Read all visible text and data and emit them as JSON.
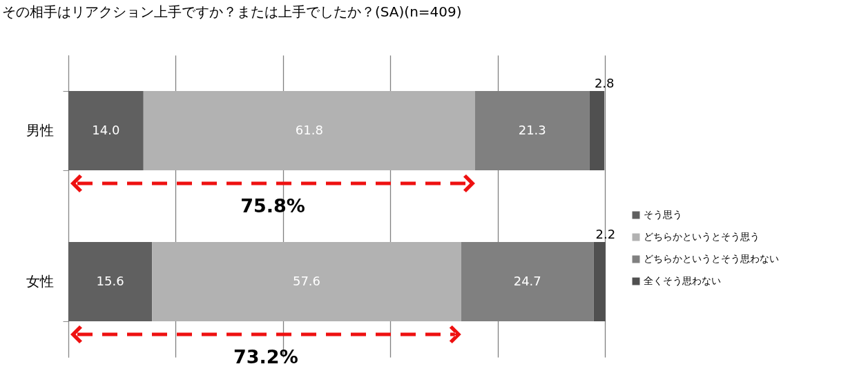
{
  "chart_data": {
    "type": "bar",
    "orientation": "horizontal",
    "stacked": true,
    "title": "その相手はリアクション上手ですか？または上手でしたか？(SA)(n=409)",
    "categories": [
      "男性",
      "女性"
    ],
    "series": [
      {
        "name": "そう思う",
        "color": "#606060",
        "values": [
          14.0,
          15.6
        ],
        "value_labels": [
          "14.0",
          "15.6"
        ]
      },
      {
        "name": "どちらかというとそう思う",
        "color": "#b2b2b2",
        "values": [
          61.8,
          57.6
        ],
        "value_labels": [
          "61.8",
          "57.6"
        ]
      },
      {
        "name": "どちらかというとそう思わない",
        "color": "#808080",
        "values": [
          21.3,
          24.7
        ],
        "value_labels": [
          "21.3",
          "24.7"
        ]
      },
      {
        "name": "全くそう思わない",
        "color": "#505050",
        "values": [
          2.8,
          2.2
        ],
        "value_labels": [
          "2.8",
          "2.2"
        ]
      }
    ],
    "xlim": [
      0,
      100
    ],
    "xticks": [
      {
        "value": 0,
        "label": null
      },
      {
        "value": 20,
        "label": null
      },
      {
        "value": 40,
        "label": null
      },
      {
        "value": 60,
        "label": null
      },
      {
        "value": 80,
        "label": null
      },
      {
        "value": 100,
        "label": null
      }
    ],
    "tick_labels": "y",
    "grid": "x",
    "legend": "right",
    "annotations": [
      "75.8%",
      "73.2%"
    ]
  }
}
